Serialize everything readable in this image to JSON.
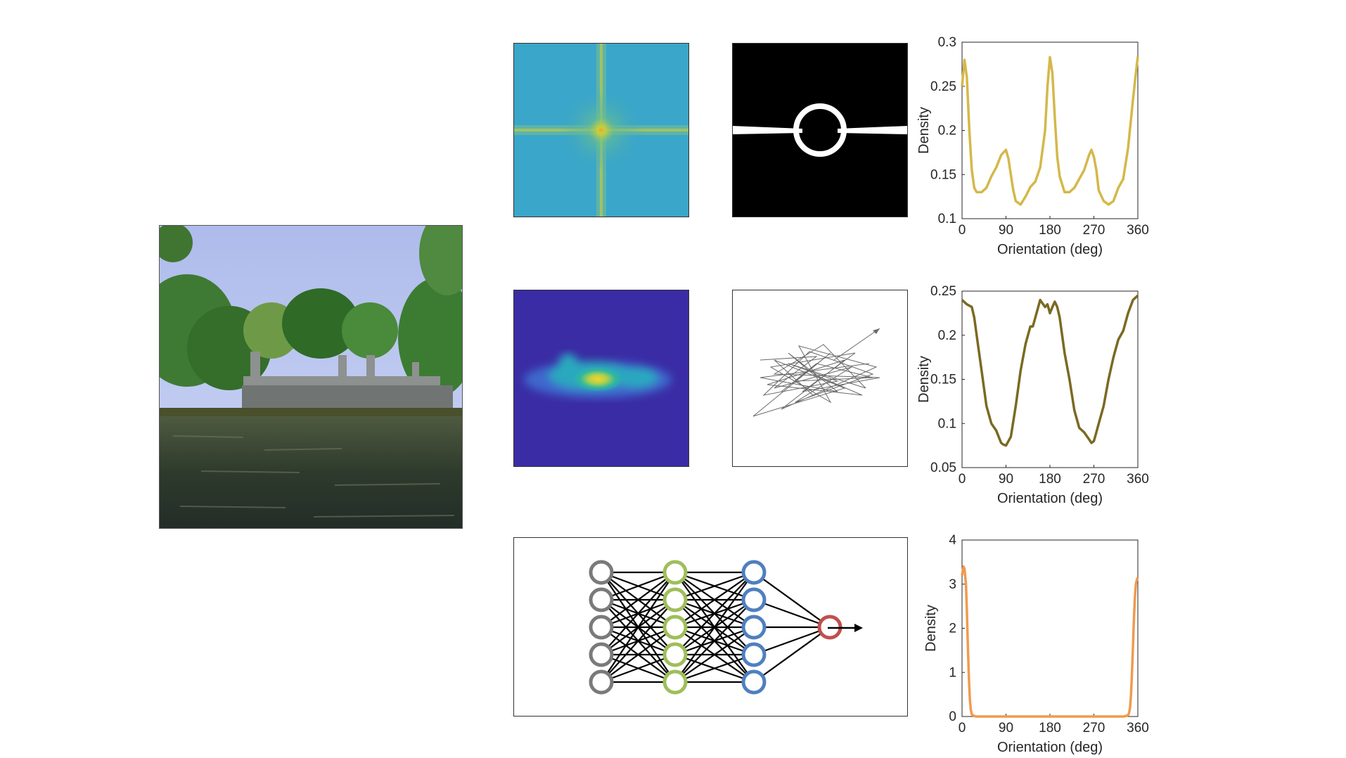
{
  "photo": {
    "sky": "#b8c7ef",
    "foliage": "#3f7a34",
    "water": "#2c3a2c",
    "bridge": "#8d918f"
  },
  "fft_map": {
    "background": "#3aa6c9",
    "cross": "#c7cf3a",
    "center": "#f1a13c"
  },
  "mask_map": {
    "background": "#000000",
    "shape": "#ffffff"
  },
  "heat_map": {
    "background": "#3a2ca4",
    "blob": "#2fb7a0",
    "hot": "#f6d42a"
  },
  "network": {
    "layers": [
      {
        "count": 5,
        "color": "#7a7a7a"
      },
      {
        "count": 5,
        "color": "#9fbe5a"
      },
      {
        "count": 5,
        "color": "#4f7fbf"
      },
      {
        "count": 1,
        "color": "#c0504d"
      }
    ]
  },
  "chart_data": [
    {
      "type": "line",
      "xlabel": "Orientation (deg)",
      "ylabel": "Density",
      "xlim": [
        0,
        360
      ],
      "ylim": [
        0.1,
        0.3
      ],
      "xticks": [
        "0",
        "90",
        "180",
        "270",
        "360"
      ],
      "yticks": [
        "0.1",
        "0.15",
        "0.2",
        "0.25",
        "0.3"
      ],
      "grid": false,
      "color": "#d4b84a",
      "x": [
        0,
        5,
        10,
        15,
        20,
        25,
        30,
        40,
        50,
        60,
        70,
        80,
        90,
        95,
        100,
        105,
        110,
        120,
        130,
        140,
        150,
        160,
        170,
        175,
        180,
        185,
        190,
        195,
        200,
        210,
        220,
        230,
        240,
        250,
        260,
        265,
        270,
        275,
        280,
        290,
        300,
        310,
        320,
        330,
        340,
        350,
        355,
        360
      ],
      "y": [
        0.25,
        0.28,
        0.26,
        0.2,
        0.155,
        0.135,
        0.13,
        0.13,
        0.135,
        0.148,
        0.158,
        0.172,
        0.178,
        0.168,
        0.15,
        0.132,
        0.12,
        0.116,
        0.125,
        0.136,
        0.142,
        0.158,
        0.2,
        0.25,
        0.283,
        0.265,
        0.215,
        0.17,
        0.148,
        0.13,
        0.13,
        0.135,
        0.145,
        0.155,
        0.172,
        0.178,
        0.17,
        0.155,
        0.132,
        0.12,
        0.116,
        0.12,
        0.135,
        0.145,
        0.18,
        0.235,
        0.26,
        0.284
      ]
    },
    {
      "type": "line",
      "xlabel": "Orientation (deg)",
      "ylabel": "Density",
      "xlim": [
        0,
        360
      ],
      "ylim": [
        0.05,
        0.25
      ],
      "xticks": [
        "0",
        "90",
        "180",
        "270",
        "360"
      ],
      "yticks": [
        "0.05",
        "0.1",
        "0.15",
        "0.2",
        "0.25"
      ],
      "grid": false,
      "color": "#7a6a22",
      "x": [
        0,
        10,
        20,
        25,
        30,
        40,
        50,
        60,
        70,
        75,
        80,
        85,
        90,
        95,
        100,
        110,
        120,
        130,
        140,
        145,
        150,
        160,
        170,
        175,
        180,
        185,
        190,
        195,
        200,
        210,
        220,
        230,
        240,
        250,
        260,
        265,
        270,
        275,
        280,
        290,
        300,
        310,
        320,
        330,
        340,
        350,
        360
      ],
      "y": [
        0.24,
        0.235,
        0.232,
        0.22,
        0.2,
        0.16,
        0.12,
        0.1,
        0.092,
        0.085,
        0.078,
        0.076,
        0.075,
        0.08,
        0.085,
        0.12,
        0.16,
        0.19,
        0.21,
        0.21,
        0.22,
        0.24,
        0.232,
        0.235,
        0.225,
        0.232,
        0.238,
        0.232,
        0.22,
        0.18,
        0.15,
        0.115,
        0.095,
        0.09,
        0.082,
        0.078,
        0.08,
        0.09,
        0.1,
        0.12,
        0.15,
        0.175,
        0.195,
        0.205,
        0.225,
        0.24,
        0.245
      ]
    },
    {
      "type": "line",
      "xlabel": "Orientation (deg)",
      "ylabel": "Density",
      "xlim": [
        0,
        360
      ],
      "ylim": [
        0,
        4
      ],
      "xticks": [
        "0",
        "90",
        "180",
        "270",
        "360"
      ],
      "yticks": [
        "0",
        "1",
        "2",
        "3",
        "4"
      ],
      "grid": false,
      "color": "#f09a4e",
      "x": [
        0,
        3,
        5,
        8,
        10,
        12,
        14,
        16,
        18,
        20,
        25,
        30,
        60,
        90,
        120,
        150,
        180,
        210,
        240,
        270,
        300,
        330,
        335,
        340,
        342,
        344,
        346,
        348,
        350,
        352,
        354,
        356,
        358,
        360
      ],
      "y": [
        3.2,
        3.4,
        3.35,
        3.0,
        2.4,
        1.6,
        0.9,
        0.4,
        0.15,
        0.05,
        0.01,
        0.0,
        0.0,
        0.0,
        0.0,
        0.0,
        0.0,
        0.0,
        0.0,
        0.0,
        0.0,
        0.0,
        0.01,
        0.03,
        0.08,
        0.2,
        0.5,
        1.0,
        1.6,
        2.2,
        2.7,
        3.0,
        3.1,
        3.15
      ]
    }
  ]
}
